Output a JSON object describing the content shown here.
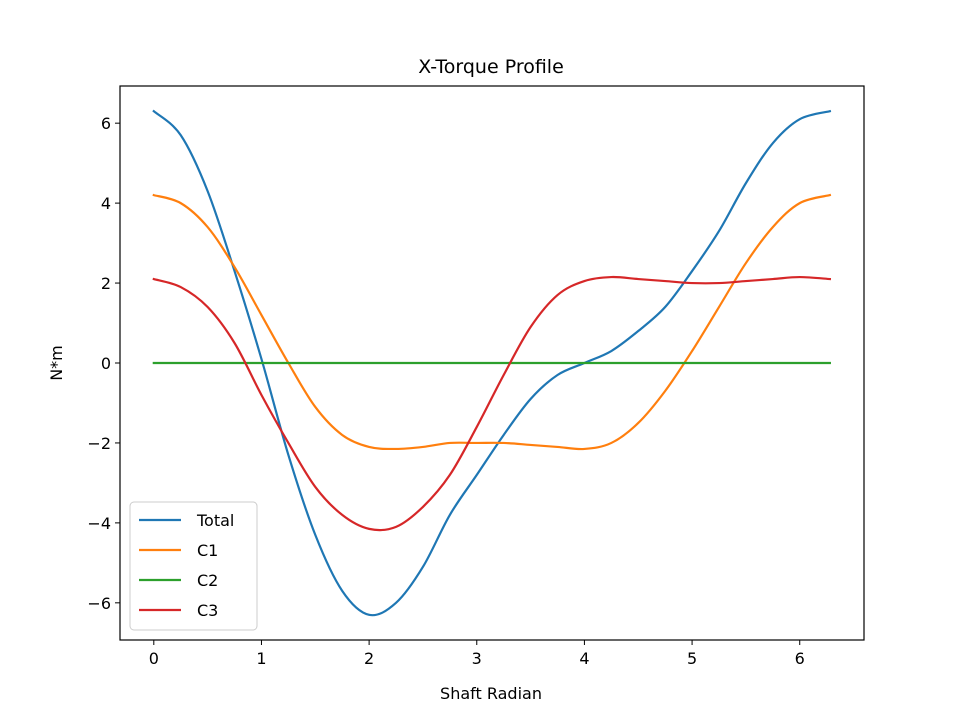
{
  "chart_data": {
    "type": "line",
    "title": "X-Torque Profile",
    "xlabel": "Shaft Radian",
    "ylabel": "N*m",
    "xlim": [
      -0.314,
      6.597
    ],
    "ylim": [
      -6.93,
      6.93
    ],
    "xticks": [
      0,
      1,
      2,
      3,
      4,
      5,
      6
    ],
    "yticks": [
      -6,
      -4,
      -2,
      0,
      2,
      4,
      6
    ],
    "ytick_labels": [
      "−6",
      "−4",
      "−2",
      "0",
      "2",
      "4",
      "6"
    ],
    "grid": false,
    "legend_position": "lower-left",
    "series": [
      {
        "name": "Total",
        "color": "#1f77b4",
        "x": [
          0,
          0.25,
          0.5,
          0.75,
          1.0,
          1.25,
          1.5,
          1.75,
          2.0,
          2.25,
          2.5,
          2.75,
          3.0,
          3.25,
          3.5,
          3.75,
          4.0,
          4.25,
          4.5,
          4.75,
          5.0,
          5.25,
          5.5,
          5.75,
          6.0,
          6.28
        ],
        "y": [
          6.3,
          5.7,
          4.3,
          2.3,
          0.1,
          -2.3,
          -4.3,
          -5.7,
          -6.3,
          -6.0,
          -5.1,
          -3.8,
          -2.8,
          -1.8,
          -0.9,
          -0.3,
          0.0,
          0.3,
          0.8,
          1.4,
          2.3,
          3.3,
          4.5,
          5.5,
          6.1,
          6.3
        ]
      },
      {
        "name": "C1",
        "color": "#ff7f0e",
        "x": [
          0,
          0.25,
          0.5,
          0.75,
          1.0,
          1.25,
          1.5,
          1.75,
          2.0,
          2.25,
          2.5,
          2.75,
          3.0,
          3.25,
          3.5,
          3.75,
          4.0,
          4.25,
          4.5,
          4.75,
          5.0,
          5.25,
          5.5,
          5.75,
          6.0,
          6.28
        ],
        "y": [
          4.2,
          4.0,
          3.4,
          2.4,
          1.2,
          0.0,
          -1.1,
          -1.8,
          -2.1,
          -2.15,
          -2.1,
          -2.0,
          -2.0,
          -2.0,
          -2.05,
          -2.1,
          -2.15,
          -2.0,
          -1.5,
          -0.7,
          0.3,
          1.4,
          2.5,
          3.4,
          4.0,
          4.2
        ]
      },
      {
        "name": "C2",
        "color": "#2ca02c",
        "x": [
          0,
          6.28
        ],
        "y": [
          0,
          0
        ]
      },
      {
        "name": "C3",
        "color": "#d62728",
        "x": [
          0,
          0.25,
          0.5,
          0.75,
          1.0,
          1.25,
          1.5,
          1.75,
          2.0,
          2.25,
          2.5,
          2.75,
          3.0,
          3.25,
          3.5,
          3.75,
          4.0,
          4.25,
          4.5,
          4.75,
          5.0,
          5.25,
          5.5,
          5.75,
          6.0,
          6.28
        ],
        "y": [
          2.1,
          1.9,
          1.4,
          0.5,
          -0.8,
          -2.0,
          -3.1,
          -3.8,
          -4.15,
          -4.1,
          -3.6,
          -2.8,
          -1.6,
          -0.3,
          0.9,
          1.7,
          2.05,
          2.15,
          2.1,
          2.05,
          2.0,
          2.0,
          2.05,
          2.1,
          2.15,
          2.1
        ]
      }
    ]
  }
}
